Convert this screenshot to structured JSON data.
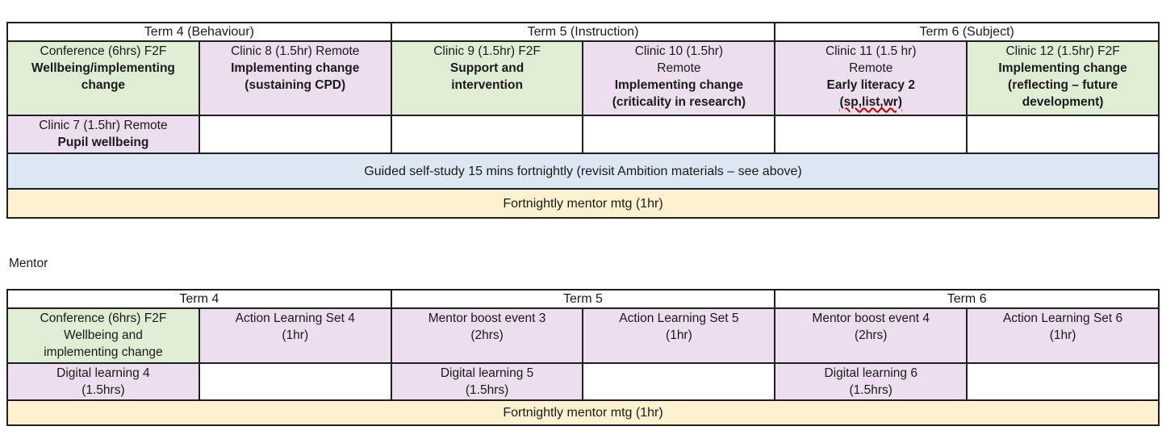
{
  "colors": {
    "green": "#dfedd5",
    "pink": "#ecdeee",
    "blue": "#dde7f3",
    "yellow": "#fdf2cf",
    "squiggle": "#c00000",
    "border": "#1f1f1f"
  },
  "mentor_heading": "Mentor",
  "top_table": {
    "term_headers": [
      "Term 4 (Behaviour)",
      "Term 5 (Instruction)",
      "Term 6 (Subject)"
    ],
    "main_row": [
      {
        "lines": [
          "Conference (6hrs) F2F",
          "Wellbeing/implementing",
          "change"
        ]
      },
      {
        "lines": [
          "Clinic 8 (1.5hr) Remote",
          "Implementing change",
          "(sustaining CPD)"
        ]
      },
      {
        "lines": [
          "Clinic 9 (1.5hr) F2F",
          "Support and",
          "intervention"
        ]
      },
      {
        "lines": [
          "Clinic 10 (1.5hr)",
          "Remote",
          "Implementing change",
          "(criticality in research)"
        ]
      },
      {
        "lines": [
          "Clinic 11 (1.5 hr)",
          "Remote",
          "Early literacy 2",
          "(sp,list,wr)"
        ]
      },
      {
        "lines": [
          "Clinic 12 (1.5hr) F2F",
          "Implementing change",
          "(reflecting – future",
          "development)"
        ]
      }
    ],
    "extra_row": {
      "lines": [
        "Clinic 7 (1.5hr) Remote",
        "Pupil wellbeing"
      ]
    },
    "self_study_row": "Guided self-study 15 mins fortnightly (revisit Ambition materials – see above)",
    "mentor_meeting_row": "Fortnightly mentor mtg (1hr)"
  },
  "mentor_table": {
    "term_headers": [
      "Term 4",
      "Term 5",
      "Term 6"
    ],
    "main_row": [
      {
        "lines": [
          "Conference (6hrs) F2F",
          "Wellbeing and",
          "implementing change"
        ]
      },
      {
        "lines": [
          "Action Learning Set 4",
          "(1hr)"
        ]
      },
      {
        "lines": [
          "Mentor boost event 3",
          "(2hrs)"
        ]
      },
      {
        "lines": [
          "Action Learning Set 5",
          "(1hr)"
        ]
      },
      {
        "lines": [
          "Mentor boost event 4",
          "(2hrs)"
        ]
      },
      {
        "lines": [
          "Action Learning Set 6",
          "(1hr)"
        ]
      }
    ],
    "digital_row": [
      {
        "lines": [
          "Digital learning 4",
          "(1.5hrs)"
        ]
      },
      {
        "lines": [
          "Digital learning 5",
          "(1.5hrs)"
        ]
      },
      {
        "lines": [
          "Digital learning 6",
          "(1.5hrs)"
        ]
      }
    ],
    "mentor_meeting_row": "Fortnightly mentor mtg (1hr)"
  }
}
